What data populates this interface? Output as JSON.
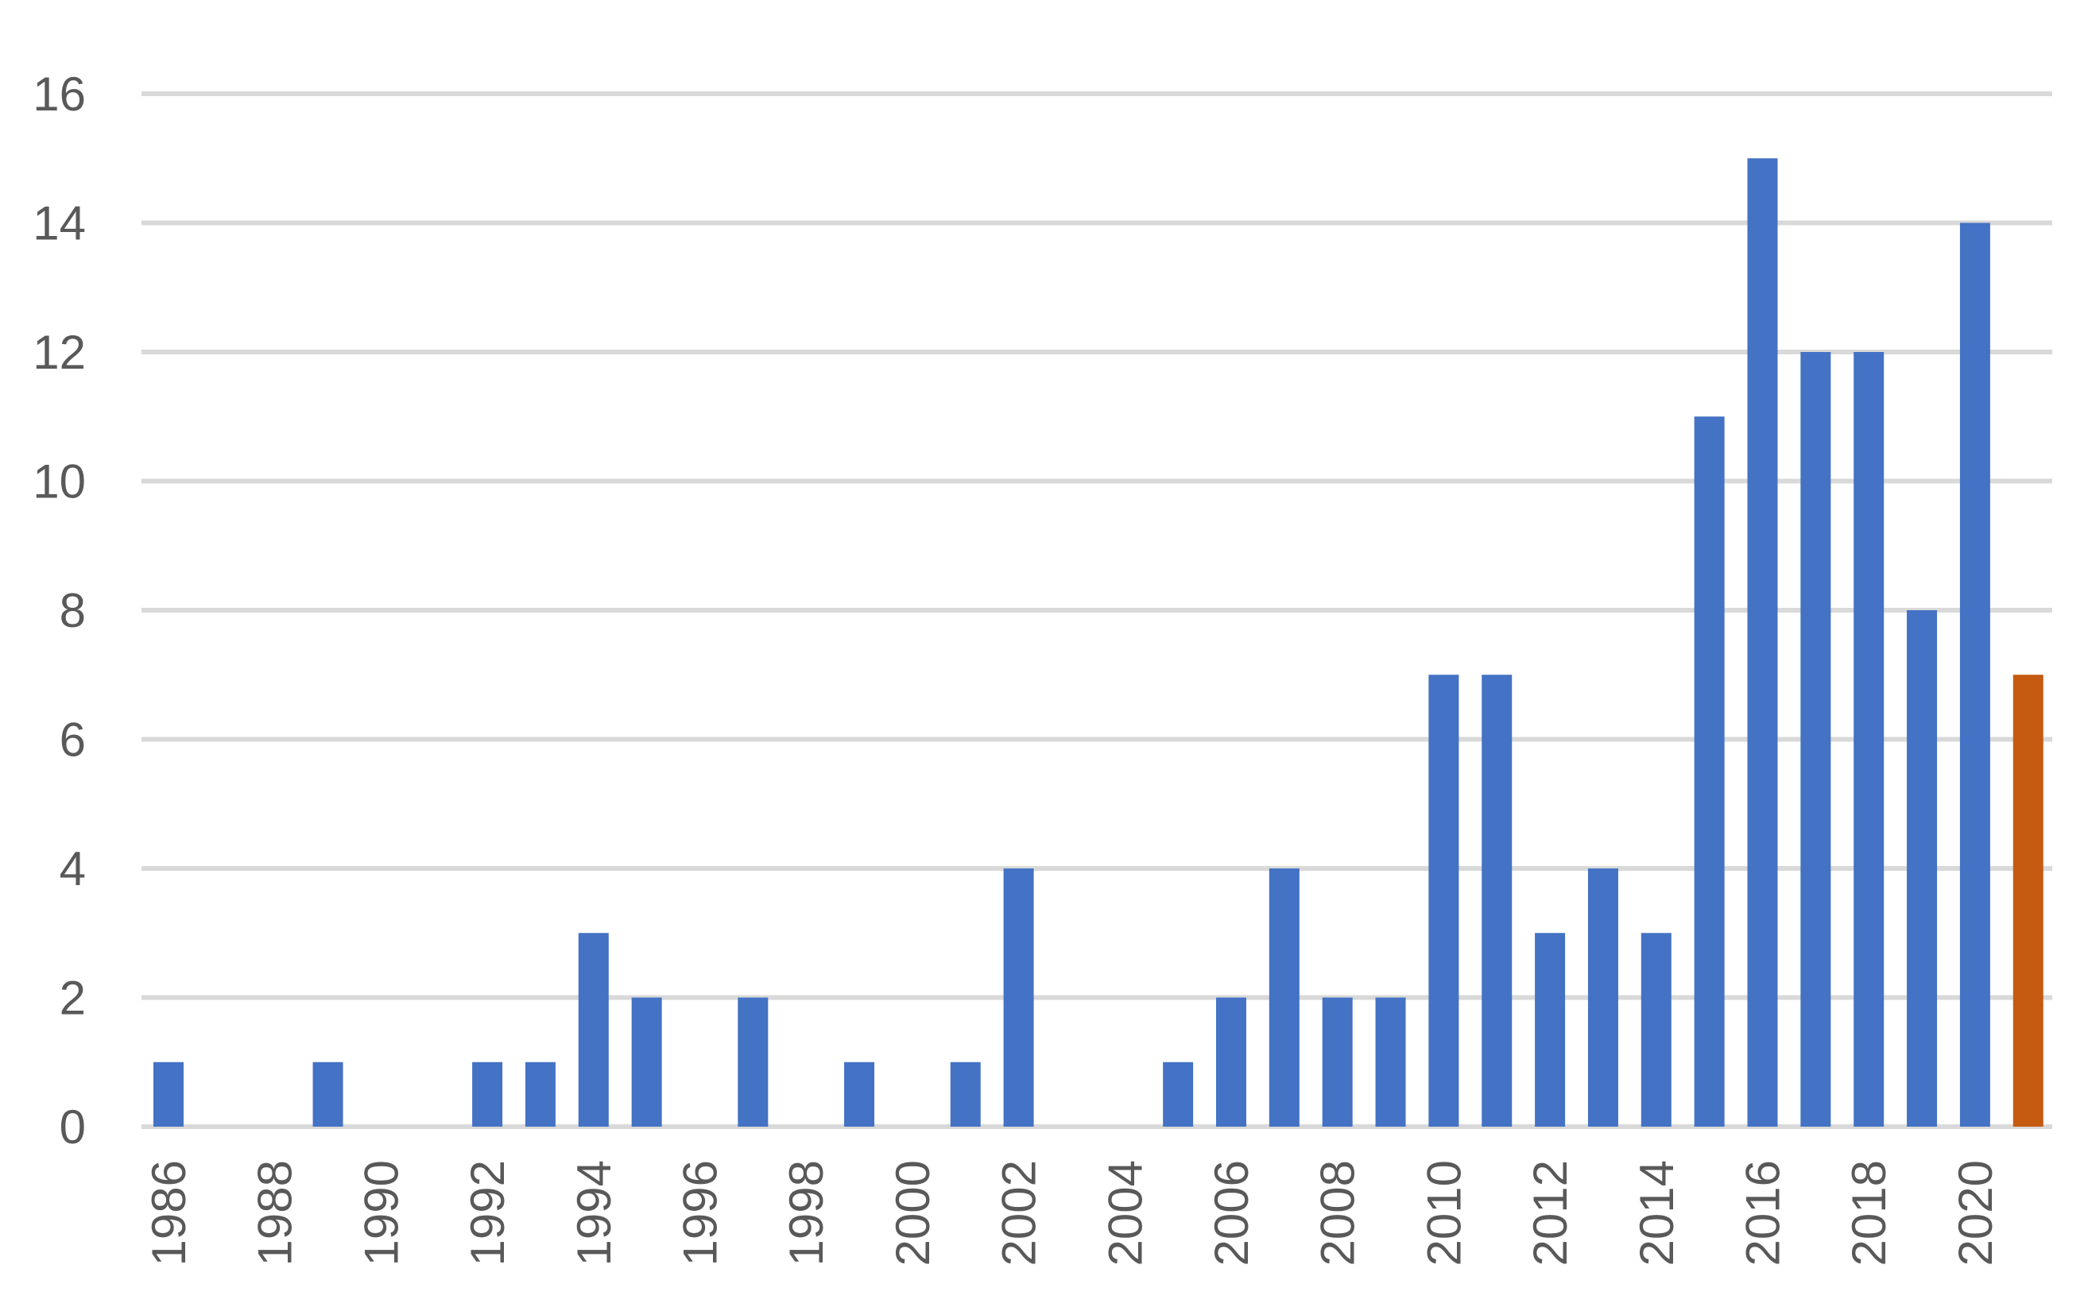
{
  "chart_data": {
    "type": "bar",
    "title": "",
    "xlabel": "",
    "ylabel": "",
    "ylim": [
      0,
      16
    ],
    "y_ticks": [
      0,
      2,
      4,
      6,
      8,
      10,
      12,
      14,
      16
    ],
    "grid": true,
    "legend": "none",
    "bar_color": "#4472c4",
    "highlight_color": "#c55a11",
    "highlight_category": "2021",
    "x_tick_labels": [
      "1986",
      "1988",
      "1990",
      "1992",
      "1994",
      "1996",
      "1998",
      "2000",
      "2002",
      "2004",
      "2006",
      "2008",
      "2010",
      "2012",
      "2014",
      "2016",
      "2018",
      "2020"
    ],
    "categories": [
      "1986",
      "1987",
      "1988",
      "1989",
      "1990",
      "1991",
      "1992",
      "1993",
      "1994",
      "1995",
      "1996",
      "1997",
      "1998",
      "1999",
      "2000",
      "2001",
      "2002",
      "2003",
      "2004",
      "2005",
      "2006",
      "2007",
      "2008",
      "2009",
      "2010",
      "2011",
      "2012",
      "2013",
      "2014",
      "2015",
      "2016",
      "2017",
      "2018",
      "2019",
      "2020",
      "2021"
    ],
    "values": [
      1,
      0,
      0,
      1,
      0,
      0,
      1,
      1,
      3,
      2,
      0,
      2,
      0,
      1,
      0,
      1,
      4,
      0,
      0,
      1,
      2,
      4,
      2,
      2,
      7,
      7,
      3,
      4,
      3,
      11,
      15,
      12,
      12,
      8,
      14,
      7
    ]
  }
}
